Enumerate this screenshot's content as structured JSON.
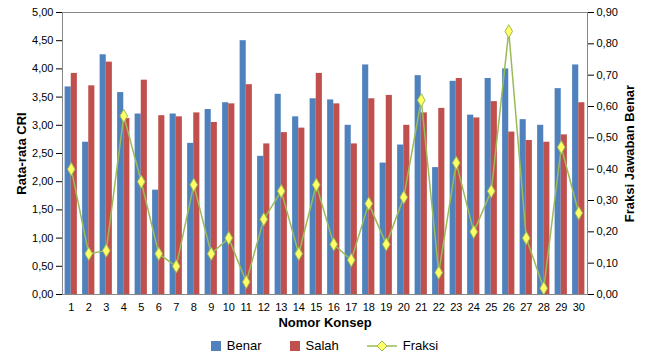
{
  "chart_data": {
    "type": "bar",
    "x_label": "Nomor Konsep",
    "y_label": "Rata-rata CRI",
    "y2_label": "Fraksi Jawaban Benar",
    "categories": [
      "1",
      "2",
      "3",
      "4",
      "5",
      "6",
      "7",
      "8",
      "9",
      "10",
      "11",
      "12",
      "13",
      "14",
      "15",
      "16",
      "17",
      "18",
      "19",
      "20",
      "21",
      "22",
      "23",
      "24",
      "25",
      "26",
      "27",
      "28",
      "29",
      "30"
    ],
    "series": [
      {
        "name": "Benar",
        "color": "#4f81bd",
        "values": [
          3.68,
          2.7,
          4.25,
          3.58,
          3.2,
          1.85,
          3.2,
          2.68,
          3.28,
          3.4,
          4.5,
          2.45,
          3.55,
          3.15,
          3.47,
          3.45,
          3.0,
          4.07,
          2.33,
          2.65,
          3.88,
          2.25,
          3.78,
          3.18,
          3.83,
          4.0,
          3.1,
          3.0,
          3.65,
          4.07
        ]
      },
      {
        "name": "Salah",
        "color": "#c0504d",
        "values": [
          3.92,
          3.7,
          4.12,
          3.12,
          3.8,
          3.17,
          3.15,
          3.22,
          3.05,
          3.38,
          3.72,
          2.67,
          2.87,
          2.95,
          3.92,
          3.38,
          2.67,
          3.47,
          3.53,
          3.0,
          3.22,
          3.3,
          3.83,
          3.13,
          3.42,
          2.88,
          2.73,
          2.7,
          2.83,
          3.4
        ]
      },
      {
        "name": "Fraksi",
        "color": "#9bbb59",
        "type": "line",
        "marker": "diamond",
        "axis": "y2",
        "values": [
          0.4,
          0.13,
          0.14,
          0.57,
          0.36,
          0.13,
          0.09,
          0.35,
          0.13,
          0.18,
          0.04,
          0.24,
          0.33,
          0.13,
          0.35,
          0.16,
          0.11,
          0.29,
          0.16,
          0.31,
          0.62,
          0.07,
          0.42,
          0.2,
          0.33,
          0.84,
          0.18,
          0.02,
          0.47,
          0.26
        ]
      }
    ],
    "ylim": [
      0,
      5
    ],
    "yticks": [
      {
        "value": 0,
        "label": "0,00"
      },
      {
        "value": 0.5,
        "label": "0,50"
      },
      {
        "value": 1,
        "label": "1,00"
      },
      {
        "value": 1.5,
        "label": "1,50"
      },
      {
        "value": 2,
        "label": "2,00"
      },
      {
        "value": 2.5,
        "label": "2,50"
      },
      {
        "value": 3,
        "label": "3,00"
      },
      {
        "value": 3.5,
        "label": "3,50"
      },
      {
        "value": 4,
        "label": "4,00"
      },
      {
        "value": 4.5,
        "label": "4,50"
      },
      {
        "value": 5,
        "label": "5,00"
      }
    ],
    "y2lim": [
      0,
      0.9
    ],
    "y2ticks": [
      {
        "value": 0,
        "label": "0,00"
      },
      {
        "value": 0.1,
        "label": "0,10"
      },
      {
        "value": 0.2,
        "label": "0,20"
      },
      {
        "value": 0.3,
        "label": "0,30"
      },
      {
        "value": 0.4,
        "label": "0,40"
      },
      {
        "value": 0.5,
        "label": "0,50"
      },
      {
        "value": 0.6,
        "label": "0,60"
      },
      {
        "value": 0.7,
        "label": "0,70"
      },
      {
        "value": 0.8,
        "label": "0,80"
      },
      {
        "value": 0.9,
        "label": "0,90"
      }
    ],
    "grid": false,
    "legend": "bottom"
  }
}
